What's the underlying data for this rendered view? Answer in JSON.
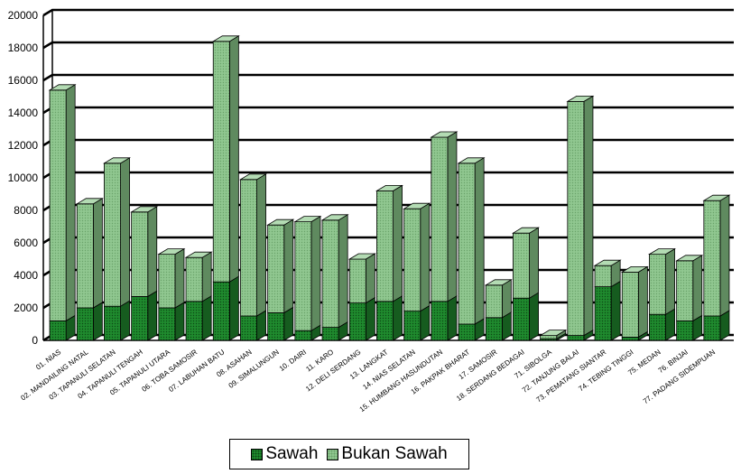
{
  "chart_data": {
    "type": "bar",
    "stacked": true,
    "three_d": true,
    "grid": true,
    "legend_position": "bottom",
    "title": "",
    "xlabel": "",
    "ylabel": "",
    "ylim": [
      0,
      20000
    ],
    "yticks": [
      0,
      2000,
      4000,
      6000,
      8000,
      10000,
      12000,
      14000,
      16000,
      18000,
      20000
    ],
    "categories": [
      "01. NIAS",
      "02. MANDAILING NATAL",
      "03. TAPANULI SELATAN",
      "04. TAPANULI TENGAH",
      "05. TAPANULI UTARA",
      "06. TOBA SAMOSIR",
      "07. LABUHAN BATU",
      "08. ASAHAN",
      "09. SIMALUNGUN",
      "10. DAIRI",
      "11. KARO",
      "12. DELI SERDANG",
      "13. LANGKAT",
      "14. NIAS SELATAN",
      "15. HUMBANG HASUNDUTAN",
      "16. PAKPAK BHARAT",
      "17. SAMOSIR",
      "18. SERDANG BEDAGAI",
      "71. SIBOLGA",
      "72. TANJUNG BALAI",
      "73. PEMATANG SIANTAR",
      "74. TEBING TINGGI",
      "75. MEDAN",
      "76. BINJAI",
      "77. PADANG SIDEMPUAN"
    ],
    "series": [
      {
        "name": "Sawah",
        "color": "#1f8a2e",
        "values": [
          1200,
          2000,
          2100,
          2700,
          2000,
          2400,
          3600,
          1500,
          1700,
          600,
          800,
          2300,
          2400,
          1800,
          2400,
          1000,
          1400,
          2600,
          100,
          300,
          3300,
          200,
          1600,
          1200,
          1500
        ]
      },
      {
        "name": "Bukan Sawah",
        "color": "#90c790",
        "values": [
          14200,
          6400,
          8800,
          5200,
          3300,
          2700,
          14800,
          8400,
          5400,
          6700,
          6600,
          2700,
          6800,
          6300,
          10100,
          9900,
          2000,
          4000,
          200,
          14400,
          1300,
          4000,
          3700,
          3700,
          7100
        ]
      }
    ]
  }
}
